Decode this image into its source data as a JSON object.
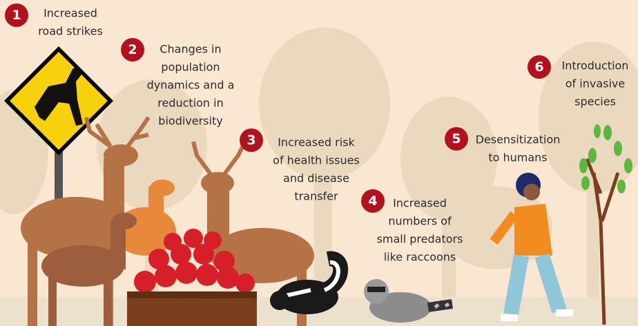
{
  "items": [
    {
      "number": 1,
      "lines": [
        "Increased",
        "road strikes"
      ]
    },
    {
      "number": 2,
      "lines": [
        "Changes in",
        "population",
        "dynamics and a",
        "reduction in",
        "biodiversity"
      ]
    },
    {
      "number": 3,
      "lines": [
        "Increased risk",
        "of health issues",
        "and disease",
        "transfer"
      ]
    },
    {
      "number": 4,
      "lines": [
        "Increased",
        "numbers of",
        "small predators",
        "like raccoons"
      ]
    },
    {
      "number": 5,
      "lines": [
        "Desensitization",
        "to humans"
      ]
    },
    {
      "number": 6,
      "lines": [
        "Introduction",
        "of invasive",
        "species"
      ]
    }
  ]
}
